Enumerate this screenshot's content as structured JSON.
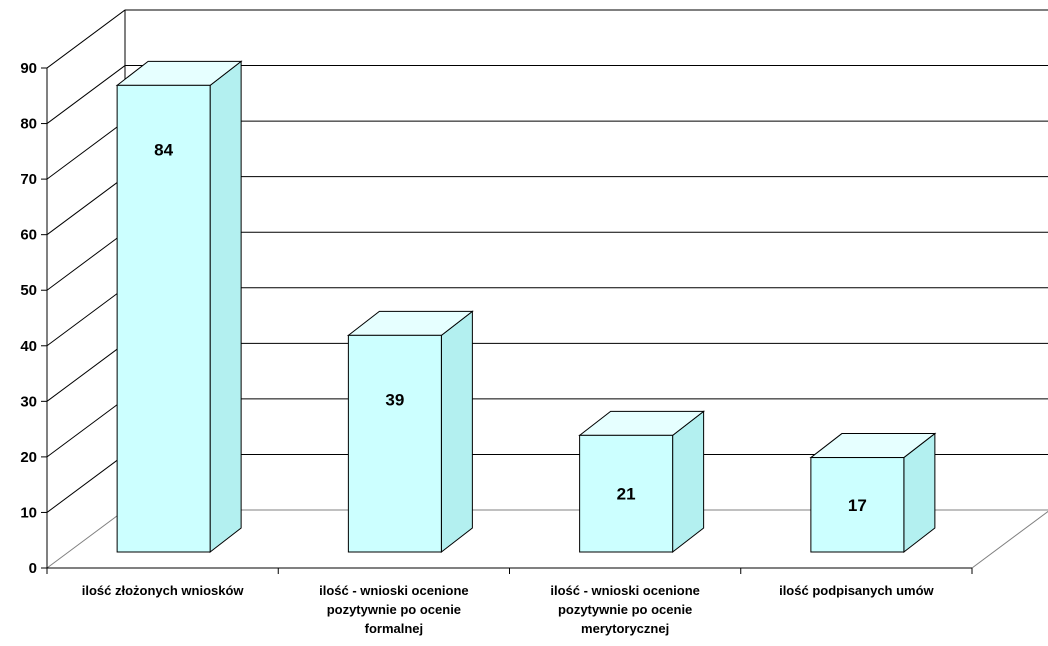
{
  "chart_data": {
    "type": "bar",
    "style": "3d-column",
    "title": "",
    "xlabel": "",
    "ylabel": "",
    "ylim": [
      0,
      90
    ],
    "yticks": [
      0,
      10,
      20,
      30,
      40,
      50,
      60,
      70,
      80,
      90
    ],
    "grid": true,
    "legend": "none",
    "categories": [
      "ilość złożonych wniosków",
      "ilość - wnioski ocenione\npozytywnie po ocenie\nformalnej",
      "ilość - wnioski ocenione\npozytywnie po ocenie\nmerytorycznej",
      "ilość podpisanych umów"
    ],
    "values": [
      84,
      39,
      21,
      17
    ],
    "data_labels": [
      "84",
      "39",
      "21",
      "17"
    ],
    "colors": {
      "front": "#ccffff",
      "top": "#e6ffff",
      "side": "#b3f0f0",
      "stroke": "#000000",
      "grid": "#000000"
    }
  }
}
